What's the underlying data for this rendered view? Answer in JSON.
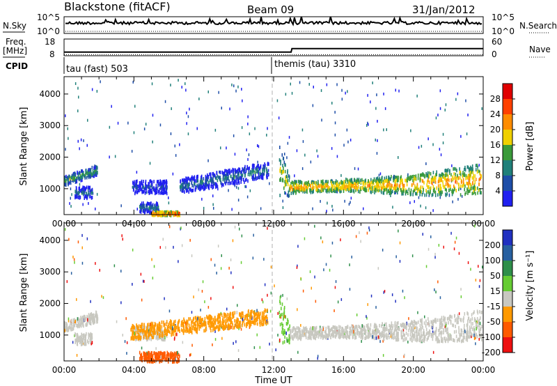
{
  "header": {
    "station": "Blackstone (fitACF)",
    "beam": "Beam 09",
    "date": "31/Jan/2012"
  },
  "status_panels": {
    "left_labels": [
      "N.Sky",
      "Freq.",
      "[MHz]",
      "CPID"
    ],
    "right_labels": [
      "N.Search",
      "Nave"
    ],
    "noise_ticks": [
      "10^5",
      "10^0"
    ],
    "noise_right_ticks": [
      "10^5",
      "10^0"
    ],
    "freq_ticks": [
      "18",
      "8"
    ],
    "nave_ticks": [
      "60",
      "0"
    ],
    "cpid_segments": [
      {
        "start": 0,
        "label": "tau (fast) 503"
      },
      {
        "start": 12.0,
        "label": "themis (tau) 3310"
      }
    ],
    "freq_series": {
      "x": [
        0,
        0.05,
        13.0,
        13.05,
        24
      ],
      "y": [
        10.2,
        10.2,
        10.2,
        12.3,
        12.3
      ]
    },
    "nave_series": {
      "x": [
        0,
        24
      ],
      "y": [
        4,
        4
      ]
    }
  },
  "chart_data": [
    {
      "type": "heatmap",
      "panel": "power",
      "ylabel": "Slant Range [km]",
      "xlabel": "",
      "xlim": [
        0,
        24
      ],
      "ylim": [
        180,
        4550
      ],
      "x_ticks": [
        "00:00",
        "04:00",
        "08:00",
        "12:00",
        "16:00",
        "20:00",
        "00:00"
      ],
      "y_ticks": [
        1000,
        2000,
        3000,
        4000
      ],
      "colorbar": {
        "label": "Power [dB]",
        "ticks": [
          "4",
          "8",
          "12",
          "16",
          "20",
          "24",
          "28"
        ],
        "colors": [
          "#2020f0",
          "#1e4ea8",
          "#20807a",
          "#3a9a3a",
          "#f0d000",
          "#ff8c00",
          "#ff4000",
          "#e00000"
        ]
      },
      "structures": [
        {
          "t0": 0.0,
          "t1": 1.9,
          "r0": 1150,
          "r1": 1800,
          "trend": "rising",
          "level": 3
        },
        {
          "t0": 0.6,
          "t1": 1.6,
          "r0": 750,
          "r1": 1100,
          "trend": "flat",
          "level": 2
        },
        {
          "t0": 3.9,
          "t1": 5.9,
          "r0": 900,
          "r1": 1300,
          "trend": "flat",
          "level": 1
        },
        {
          "t0": 4.3,
          "t1": 5.4,
          "r0": 300,
          "r1": 600,
          "trend": "flat",
          "level": 2
        },
        {
          "t0": 5.0,
          "t1": 6.6,
          "r0": 200,
          "r1": 320,
          "trend": "flat",
          "level": 6
        },
        {
          "t0": 6.6,
          "t1": 11.7,
          "r0": 900,
          "r1": 1900,
          "trend": "rising",
          "level": 2
        },
        {
          "t0": 12.3,
          "t1": 12.9,
          "r0": 800,
          "r1": 2400,
          "trend": "falling",
          "level": 4
        },
        {
          "t0": 12.9,
          "t1": 23.9,
          "r0": 900,
          "r1": 2000,
          "trend": "band",
          "level": 5
        }
      ]
    },
    {
      "type": "heatmap",
      "panel": "velocity",
      "ylabel": "Slant Range [km]",
      "xlabel": "Time UT",
      "xlim": [
        0,
        24
      ],
      "ylim": [
        180,
        4550
      ],
      "x_ticks": [
        "00:00",
        "04:00",
        "08:00",
        "12:00",
        "16:00",
        "20:00",
        "00:00"
      ],
      "y_ticks": [
        1000,
        2000,
        3000,
        4000
      ],
      "colorbar": {
        "label": "Velocity [m s⁻¹]",
        "ticks": [
          "200",
          "100",
          "50",
          "15",
          "-15",
          "-50",
          "-100",
          "-200"
        ],
        "colors": [
          "#2030c0",
          "#2860a0",
          "#2e8f4a",
          "#66cc33",
          "#c8c8c0",
          "#ff9900",
          "#ff5a00",
          "#ee1010"
        ]
      },
      "structures": [
        {
          "t0": 0.0,
          "t1": 1.9,
          "r0": 1150,
          "r1": 1800,
          "trend": "rising",
          "level": 4
        },
        {
          "t0": 0.6,
          "t1": 1.6,
          "r0": 750,
          "r1": 1100,
          "trend": "flat",
          "level": 4
        },
        {
          "t0": 3.9,
          "t1": 5.9,
          "r0": 900,
          "r1": 1300,
          "trend": "flat",
          "level": 4
        },
        {
          "t0": 4.3,
          "t1": 6.6,
          "r0": 200,
          "r1": 500,
          "trend": "flat",
          "level": 6
        },
        {
          "t0": 3.8,
          "t1": 11.7,
          "r0": 900,
          "r1": 1900,
          "trend": "rising",
          "level": 5
        },
        {
          "t0": 12.3,
          "t1": 12.9,
          "r0": 800,
          "r1": 2400,
          "trend": "falling",
          "level": 3
        },
        {
          "t0": 12.9,
          "t1": 23.9,
          "r0": 900,
          "r1": 2000,
          "trend": "band",
          "level": 4
        }
      ]
    }
  ]
}
